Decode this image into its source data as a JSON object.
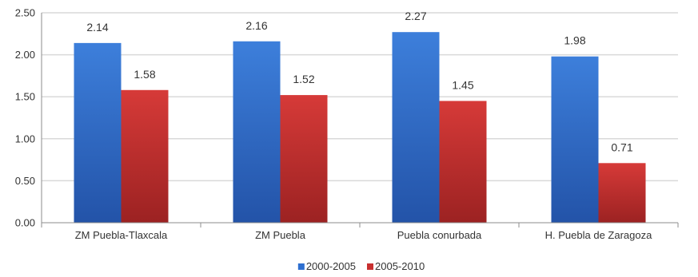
{
  "chart_data": {
    "type": "bar",
    "categories": [
      "ZM Puebla-Tlaxcala",
      "ZM Puebla",
      "Puebla conurbada",
      "H. Puebla de Zaragoza"
    ],
    "series": [
      {
        "name": "2000-2005",
        "values": [
          2.14,
          2.16,
          2.27,
          1.98
        ],
        "labels": [
          "2.14",
          "2.16",
          "2.27",
          "1.98"
        ],
        "color": "#2E6FD0"
      },
      {
        "name": "2005-2010",
        "values": [
          1.58,
          1.52,
          1.45,
          0.71
        ],
        "labels": [
          "1.58",
          "1.52",
          "1.45",
          "0.71"
        ],
        "color": "#C83030"
      }
    ],
    "ylim": [
      0,
      2.5
    ],
    "yticks": [
      "0.00",
      "0.50",
      "1.00",
      "1.50",
      "2.00",
      "2.50"
    ],
    "grid": true,
    "legend_position": "bottom"
  }
}
